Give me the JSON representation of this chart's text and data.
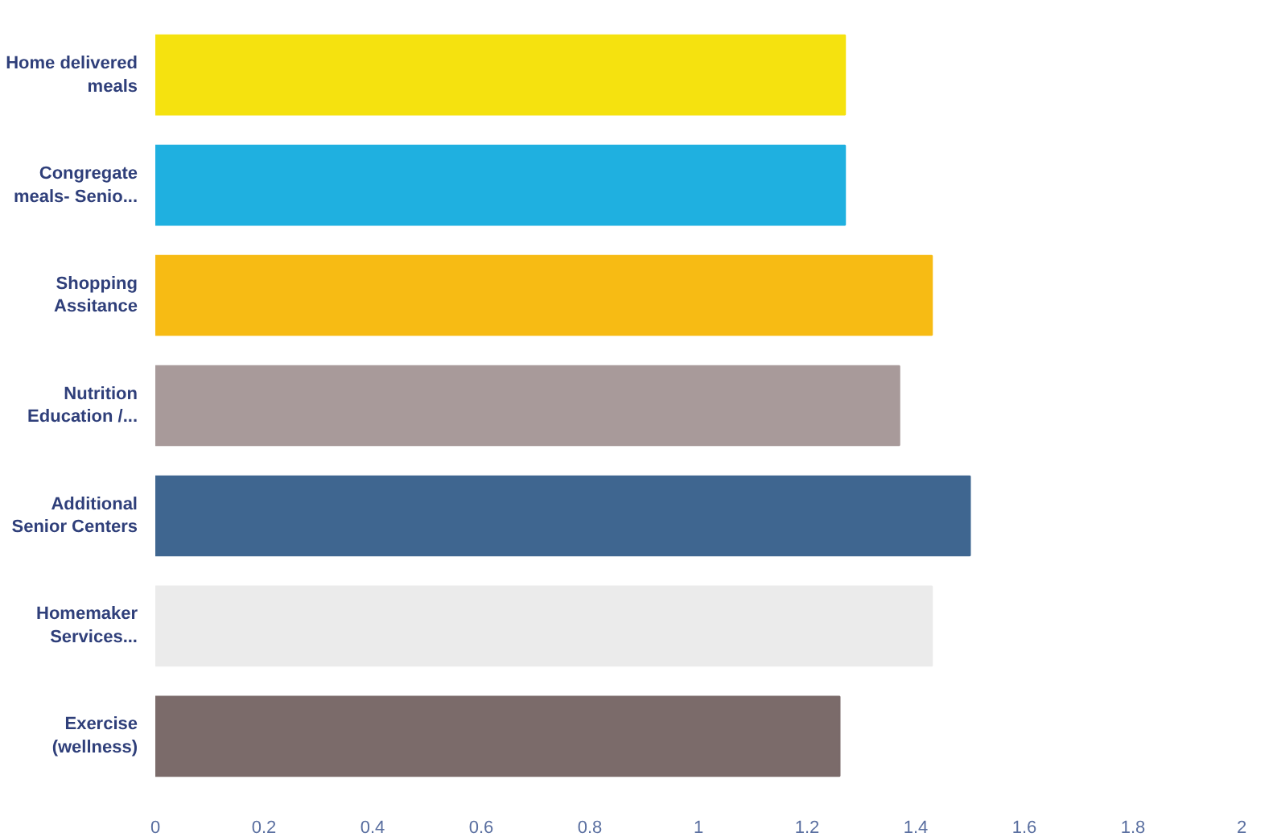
{
  "chart_data": {
    "type": "bar",
    "orientation": "horizontal",
    "categories": [
      "Home delivered\nmeals",
      "Congregate\nmeals- Senio...",
      "Shopping\nAssitance",
      "Nutrition\nEducation /...",
      "Additional\nSenior Centers",
      "Homemaker\nServices...",
      "Exercise\n(wellness)"
    ],
    "values": [
      1.27,
      1.27,
      1.43,
      1.37,
      1.5,
      1.43,
      1.26
    ],
    "colors": [
      "#f5e20f",
      "#1fb0e0",
      "#f7bb14",
      "#a89a9a",
      "#3f6690",
      "#ebebeb",
      "#7b6b6a"
    ],
    "xlim": [
      0,
      2
    ],
    "xticks": [
      0,
      0.2,
      0.4,
      0.6,
      0.8,
      1,
      1.2,
      1.4,
      1.6,
      1.8,
      2
    ],
    "grid": false
  }
}
